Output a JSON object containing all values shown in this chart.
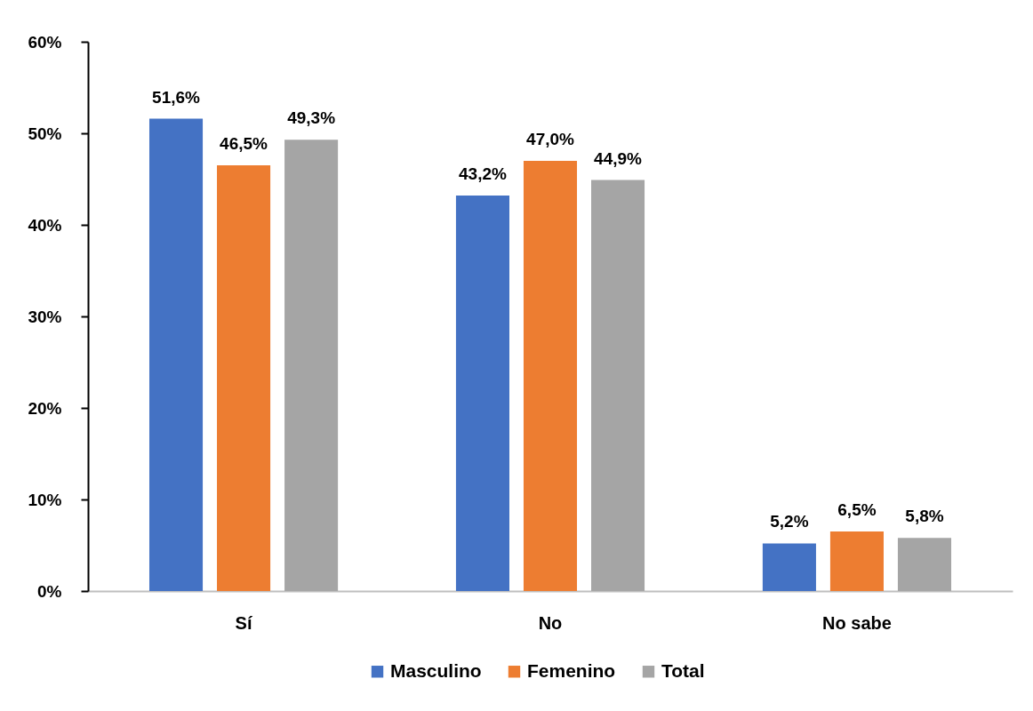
{
  "chart_data": {
    "type": "bar",
    "categories": [
      "Sí",
      "No",
      "No sabe"
    ],
    "series": [
      {
        "name": "Masculino",
        "color": "#4472c4",
        "values": [
          51.6,
          43.2,
          5.2
        ],
        "value_labels": [
          "51,6%",
          "43,2%",
          "5,2%"
        ]
      },
      {
        "name": "Femenino",
        "color": "#ed7d31",
        "values": [
          46.5,
          47.0,
          6.5
        ],
        "value_labels": [
          "46,5%",
          "47,0%",
          "6,5%"
        ]
      },
      {
        "name": "Total",
        "color": "#a5a5a5",
        "values": [
          49.3,
          44.9,
          5.8
        ],
        "value_labels": [
          "49,3%",
          "44,9%",
          "5,8%"
        ]
      }
    ],
    "ylim": [
      0,
      60
    ],
    "yticks": [
      {
        "value": 0,
        "label": "0%"
      },
      {
        "value": 10,
        "label": "10%"
      },
      {
        "value": 20,
        "label": "20%"
      },
      {
        "value": 30,
        "label": "30%"
      },
      {
        "value": 40,
        "label": "40%"
      },
      {
        "value": 50,
        "label": "50%"
      },
      {
        "value": 60,
        "label": "60%"
      }
    ],
    "legend": "bottom"
  }
}
